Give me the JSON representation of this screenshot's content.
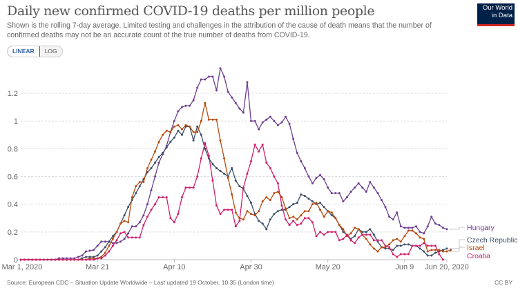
{
  "header": {
    "title": "Daily new confirmed COVID-19 deaths per million people",
    "subtitle": "Shown is the rolling 7-day average. Limited testing and challenges in the attribution of the cause of death means that the number of confirmed deaths may not be an accurate count of the true number of deaths from COVID-19.",
    "logo_text": "Our World in Data"
  },
  "controls": {
    "linear_label": "LINEAR",
    "log_label": "LOG",
    "selected": "LINEAR"
  },
  "footer": {
    "source": "Source: European CDC – Situation Update Worldwide – Last updated 19 October, 10:35 (London time)",
    "license": "CC BY"
  },
  "chart_data": {
    "type": "line",
    "title": "Daily new confirmed COVID-19 deaths per million people",
    "x_start": "2020-03-01",
    "x_end": "2020-06-20",
    "x_ticks": [
      "Mar 1, 2020",
      "Mar 21",
      "Apr 10",
      "Apr 30",
      "May 20",
      "Jun 9",
      "Jun 20, 2020"
    ],
    "y_ticks": [
      "0",
      "0.2",
      "0.4",
      "0.6",
      "0.8",
      "1",
      "1.2"
    ],
    "ylim": [
      0,
      1.4
    ],
    "grid": true,
    "legend": "right (line-end labels)",
    "series": [
      {
        "name": "Hungary",
        "color": "#6d3e91",
        "values": [
          0,
          0,
          0,
          0,
          0,
          0,
          0,
          0,
          0,
          0,
          0.01,
          0.01,
          0.01,
          0.01,
          0.01,
          0.02,
          0.03,
          0.06,
          0.065,
          0.07,
          0.1,
          0.13,
          0.13,
          0.13,
          0.12,
          0.12,
          0.13,
          0.15,
          0.19,
          0.24,
          0.24,
          0.27,
          0.32,
          0.4,
          0.5,
          0.6,
          0.7,
          0.76,
          0.82,
          0.92,
          1.0,
          1.07,
          1.1,
          1.11,
          1.11,
          1.15,
          1.24,
          1.3,
          1.3,
          1.32,
          1.32,
          1.22,
          1.38,
          1.32,
          1.21,
          1.17,
          1.13,
          1.09,
          1.06,
          1.28,
          1.0,
          1.0,
          0.94,
          0.99,
          1.01,
          1.03,
          1.0,
          0.97,
          0.99,
          1.03,
          0.98,
          0.87,
          0.77,
          0.71,
          0.66,
          0.6,
          0.55,
          0.59,
          0.61,
          0.58,
          0.52,
          0.48,
          0.48,
          0.48,
          0.42,
          0.45,
          0.49,
          0.52,
          0.55,
          0.52,
          0.49,
          0.56,
          0.52,
          0.48,
          0.43,
          0.38,
          0.31,
          0.29,
          0.34,
          0.24,
          0.23,
          0.23,
          0.23,
          0.24,
          0.2,
          0.19,
          0.24,
          0.31,
          0.26,
          0.25,
          0.23,
          0.22
        ]
      },
      {
        "name": "Czech Republic",
        "color": "#3c4e66",
        "values": [
          0,
          0,
          0,
          0,
          0,
          0,
          0,
          0,
          0,
          0,
          0,
          0,
          0,
          0,
          0,
          0,
          0.01,
          0.02,
          0.02,
          0.02,
          0.03,
          0.06,
          0.09,
          0.13,
          0.17,
          0.2,
          0.26,
          0.32,
          0.38,
          0.43,
          0.48,
          0.53,
          0.58,
          0.63,
          0.66,
          0.7,
          0.74,
          0.77,
          0.81,
          0.85,
          0.88,
          0.93,
          0.9,
          0.96,
          0.96,
          0.86,
          0.96,
          0.9,
          0.8,
          0.73,
          0.69,
          0.66,
          0.64,
          0.62,
          0.6,
          0.66,
          0.57,
          0.53,
          0.51,
          0.46,
          0.41,
          0.33,
          0.28,
          0.26,
          0.22,
          0.29,
          0.33,
          0.35,
          0.36,
          0.36,
          0.38,
          0.4,
          0.41,
          0.47,
          0.46,
          0.44,
          0.42,
          0.4,
          0.41,
          0.38,
          0.35,
          0.32,
          0.3,
          0.25,
          0.2,
          0.18,
          0.15,
          0.17,
          0.22,
          0.2,
          0.2,
          0.22,
          0.18,
          0.13,
          0.09,
          0.08,
          0.08,
          0.07,
          0.1,
          0.1,
          0.11,
          0.11,
          0.1,
          0.1,
          0.08,
          0.06,
          0.03,
          0.03,
          0.05,
          0.06,
          0.07,
          0.08
        ]
      },
      {
        "name": "Israel",
        "color": "#b84a0c",
        "values": [
          0,
          0,
          0,
          0,
          0,
          0,
          0,
          0,
          0,
          0,
          0,
          0,
          0,
          0,
          0,
          0,
          0,
          0,
          0.01,
          0.01,
          0.01,
          0.02,
          0.05,
          0.1,
          0.15,
          0.2,
          0.26,
          0.28,
          0.27,
          0.45,
          0.53,
          0.56,
          0.56,
          0.66,
          0.72,
          0.78,
          0.85,
          0.9,
          0.93,
          0.92,
          0.96,
          0.97,
          0.94,
          0.97,
          0.96,
          0.92,
          0.92,
          1.0,
          1.13,
          1.01,
          1.01,
          1.01,
          0.86,
          0.73,
          0.59,
          0.47,
          0.34,
          0.3,
          0.29,
          0.35,
          0.33,
          0.32,
          0.35,
          0.42,
          0.45,
          0.43,
          0.48,
          0.49,
          0.45,
          0.37,
          0.3,
          0.31,
          0.29,
          0.32,
          0.35,
          0.35,
          0.4,
          0.41,
          0.36,
          0.31,
          0.35,
          0.34,
          0.3,
          0.25,
          0.22,
          0.17,
          0.19,
          0.23,
          0.22,
          0.18,
          0.15,
          0.11,
          0.08,
          0.06,
          0.09,
          0.09,
          0.11,
          0.14,
          0.15,
          0.13,
          0.17,
          0.21,
          0.21,
          0.19,
          0.16,
          0.15,
          0.06,
          0.07,
          0.07,
          0.07,
          0.06,
          0.06,
          0.07
        ]
      },
      {
        "name": "Croatia",
        "color": "#cf1f6c",
        "values": [
          0,
          0,
          0,
          0,
          0,
          0,
          0,
          0,
          0,
          0,
          0,
          0,
          0,
          0,
          0,
          0,
          0,
          0,
          0,
          0,
          0.01,
          0.01,
          0.03,
          0.06,
          0.1,
          0.14,
          0.19,
          0.2,
          0.16,
          0.16,
          0.16,
          0.16,
          0.25,
          0.31,
          0.36,
          0.4,
          0.45,
          0.45,
          0.45,
          0.3,
          0.27,
          0.33,
          0.45,
          0.52,
          0.52,
          0.52,
          0.6,
          0.73,
          0.84,
          0.75,
          0.57,
          0.39,
          0.33,
          0.36,
          0.36,
          0.36,
          0.24,
          0.28,
          0.52,
          0.62,
          0.71,
          0.83,
          0.78,
          0.83,
          0.7,
          0.66,
          0.6,
          0.55,
          0.39,
          0.29,
          0.25,
          0.28,
          0.25,
          0.26,
          0.3,
          0.3,
          0.27,
          0.17,
          0.2,
          0.18,
          0.2,
          0.2,
          0.2,
          0.14,
          0.15,
          0.18,
          0.14,
          0.12,
          0.16,
          0.18,
          0.18,
          0.18,
          0.14,
          0.14,
          0.14,
          0.1,
          0.09,
          0.04,
          0.02,
          0.04,
          0.04,
          0.04,
          0.1,
          0.1,
          0.1,
          0.12,
          0.1,
          0.1,
          0.1,
          0.04,
          0
        ]
      }
    ]
  }
}
